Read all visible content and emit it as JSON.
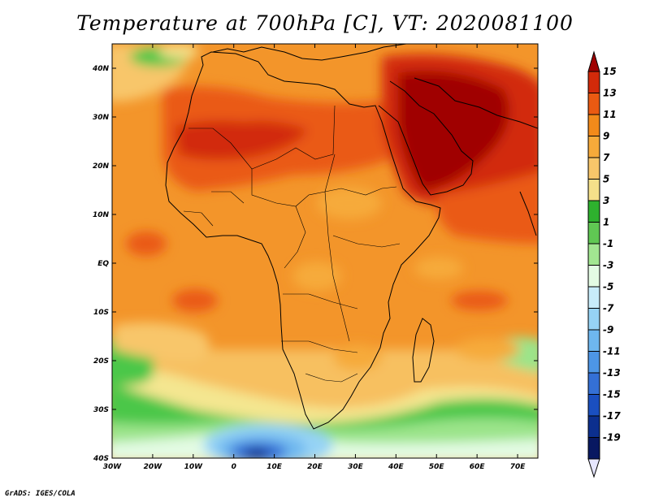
{
  "title": "Temperature at 700hPa [C], VT: 2020081100",
  "credit": "GrADS: IGES/COLA",
  "map": {
    "lat_labels": [
      "40N",
      "30N",
      "20N",
      "10N",
      "EQ",
      "10S",
      "20S",
      "30S",
      "40S"
    ],
    "lon_labels": [
      "30W",
      "20W",
      "10W",
      "0",
      "10E",
      "20E",
      "30E",
      "40E",
      "50E",
      "60E",
      "70E"
    ],
    "extent": {
      "lon": [
        -30,
        75
      ],
      "lat": [
        -40,
        45
      ]
    }
  },
  "colorbar": {
    "labels": [
      "15",
      "13",
      "11",
      "9",
      "7",
      "5",
      "3",
      "1",
      "-1",
      "-3",
      "-5",
      "-7",
      "-9",
      "-11",
      "-13",
      "-15",
      "-17",
      "-19"
    ],
    "colors": [
      "#a00000",
      "#d22a0a",
      "#ea5a12",
      "#f28a1a",
      "#f6aa3a",
      "#f8c66a",
      "#f5e08a",
      "#2eb12e",
      "#60c853",
      "#a2e691",
      "#e3fbe3",
      "#c8ecfa",
      "#96d3f5",
      "#6eb7ef",
      "#4d96e6",
      "#3470d6",
      "#1a4fc0",
      "#0c2f8e",
      "#081861",
      "#e6e6ff"
    ]
  }
}
